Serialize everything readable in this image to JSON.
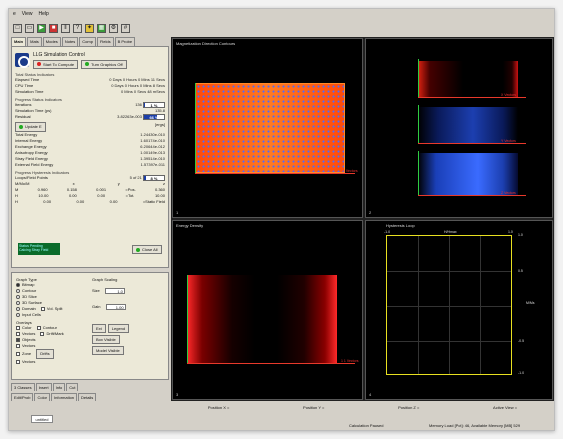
{
  "menubar": {
    "items": [
      "e",
      "View",
      "Help"
    ]
  },
  "tabs": [
    "Main",
    "Mats",
    "Modes",
    "Notes",
    "Comp",
    "Fields",
    "B Probe"
  ],
  "sim": {
    "title": "LLG Simulation Control",
    "start_label": "Start To Compute",
    "graphics_label": "Turn Graphics Off",
    "status_section": "Total Status Indicators",
    "elapsed_label": "Elapsed Time",
    "elapsed_value": "0 Days 0 Hours 0 Mins 11 Secs",
    "cpu_label": "CPU Time",
    "cpu_value": "0 Days 0 Hours 0 Mins 8 Secs",
    "simtime_label": "Simulation Time",
    "simtime_value": "0 Mins 0 Secs 48 mSecs",
    "progress_section": "Progress Status Indicators",
    "iter_label": "Iterations",
    "iter_value": "136",
    "iter_pct": "1 %",
    "simtime_ns_label": "Simulation Time (ps)",
    "simtime_ns_value": "135.8",
    "residual_label": "Residual",
    "residual_value": "3.82263e-003",
    "residual_pct": "66 %",
    "update_label": "Update E",
    "unit_label": "[ergs]",
    "energy_rows": [
      {
        "label": "Total Energy",
        "value": "1.24430e-010"
      },
      {
        "label": "Internal Energy",
        "value": "1.60174e-010"
      },
      {
        "label": "Exchange Energy",
        "value": "6.20644e-012"
      },
      {
        "label": "Anisotropy Energy",
        "value": "1.00149e-013"
      },
      {
        "label": "Stray Field Energy",
        "value": "1.39514e-010"
      },
      {
        "label": "External Field Energy",
        "value": "1.57397e-011"
      }
    ],
    "hyst_section": "Progress Hysteresis Indicators",
    "loops_label": "Loops/Field Points",
    "loops_value": "5 of 21",
    "loops_pct": "8 %",
    "table_head": [
      "M/Mo/M",
      "x",
      "",
      "y",
      "",
      "z"
    ],
    "table_rows": [
      [
        "M",
        "0.960",
        "0.158",
        "0.001",
        "=Pos.",
        "0.360"
      ],
      [
        "H",
        "10.00",
        "0.00",
        "0.00",
        "=Tot.",
        "10.00"
      ],
      [
        "H",
        "0.00",
        "0.00",
        "0.00",
        "=Static Field",
        ""
      ]
    ],
    "status_box": "Status Pending\nCalcing Stray Field",
    "close_label": "Close All"
  },
  "graph_panel": {
    "type_title": "Graph Type",
    "types": [
      "Bitmap",
      "Contour",
      "3D Slice",
      "3D Surface",
      "Domain",
      "Input Cells"
    ],
    "scale_title": "Graph Scaling",
    "size_label": "Size",
    "size_value": "1.0",
    "gain_label": "Gain",
    "gain_value": "1.00",
    "extra_checks": [
      "Vol. Split"
    ],
    "overlays_title": "Overlays",
    "overlays": [
      "Color",
      "Contour",
      "Vectors",
      "Drift/Mark",
      "Objects",
      "Vectors",
      "Zone",
      "Drifts",
      "Vectors"
    ],
    "buttons": [
      "Ext",
      "Legend",
      "Box Visible",
      "Model Visible"
    ]
  },
  "bottom_tabs": [
    "3 Classes",
    "Insert",
    "Info",
    "Cut",
    "Edit/Prob",
    "Color",
    "Information",
    "Details"
  ],
  "viewports": [
    {
      "title": "Magnetization Direction Contours",
      "num": "1",
      "axis_label": "1 Vectors"
    },
    {
      "title": "",
      "num": "2",
      "axis_labels": [
        "X Vectors",
        "Y Vectors",
        "Z Vectors"
      ]
    },
    {
      "title": "Energy Density",
      "num": "3",
      "axis_label": "1 1 Vectors"
    },
    {
      "title": "Hysteresis Loop",
      "num": "4",
      "x_labels": [
        "-1.0",
        "0.0",
        "1.0"
      ],
      "x_unit": "H/Hmax",
      "y_labels": [
        "1.0",
        "0.5",
        "0.0",
        "-0.5",
        "-1.0"
      ],
      "y_unit": "M/Ms"
    }
  ],
  "statusbar": [
    "Position X =",
    "Position Y =",
    "Position Z =",
    "Active View ="
  ],
  "footer": {
    "tab": "untitled",
    "calc": "Calculation Paused",
    "memory": "Memory Load [Pct]: 46, Available Memory [MB] 529"
  },
  "colors": {
    "mag_base": "#ff5a12",
    "hyst_frame": "#e8e020",
    "axis_x": "#e8392b",
    "axis_y": "#2ecc40"
  }
}
